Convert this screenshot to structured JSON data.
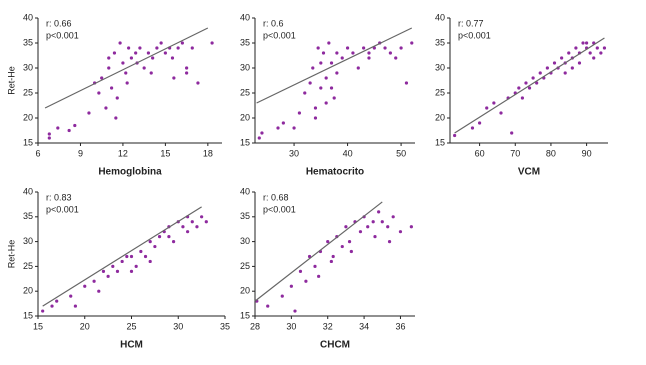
{
  "chart_data": [
    {
      "type": "scatter",
      "xlabel": "Hemoglobina",
      "ylabel": "Ret-He",
      "annotations": [
        "r: 0.66",
        "p<0.001"
      ],
      "color": "#8e2a9e",
      "x": [
        6.8,
        6.8,
        7.4,
        8.2,
        8.6,
        9.6,
        10,
        10.3,
        10.5,
        10.8,
        11,
        11.2,
        11.4,
        11.6,
        11.8,
        12,
        12.2,
        12.4,
        12.6,
        12.9,
        13.2,
        13.5,
        13.8,
        14.1,
        14.4,
        14.7,
        15,
        15.3,
        15.6,
        15.9,
        16.2,
        16.5,
        16.9,
        17.3,
        18.3,
        11,
        11.5,
        12.3,
        13,
        14,
        15.5,
        16.5
      ],
      "y": [
        16,
        16.8,
        18,
        17.5,
        18.5,
        21,
        27,
        25,
        28,
        22,
        30,
        26,
        33,
        24,
        35,
        31,
        29,
        34,
        32,
        33,
        34,
        30,
        33,
        32,
        34,
        35,
        33,
        34,
        28,
        34,
        35,
        29,
        34,
        27,
        35,
        32,
        20,
        27,
        31,
        29,
        32,
        30
      ],
      "trendline": {
        "x": [
          6.5,
          18
        ],
        "y": [
          22,
          38
        ]
      },
      "xlim": [
        6,
        19
      ],
      "ylim": [
        15,
        40
      ],
      "xticks": [
        6,
        9,
        12,
        15,
        18
      ],
      "yticks": [
        15,
        20,
        25,
        30,
        35,
        40
      ]
    },
    {
      "type": "scatter",
      "xlabel": "Hematocrito",
      "annotations": [
        "r: 0.6",
        "p<0.001"
      ],
      "color": "#8e2a9e",
      "x": [
        23.5,
        24,
        27,
        28,
        30,
        31,
        32,
        33,
        33.5,
        34,
        34.5,
        35,
        35.5,
        36,
        36.5,
        37,
        37.5,
        38,
        39,
        40,
        41,
        42,
        43,
        44,
        45,
        46,
        47,
        48,
        50,
        51,
        52,
        34,
        36,
        38,
        35,
        37,
        44,
        49
      ],
      "y": [
        16,
        17,
        18,
        19,
        18,
        21,
        25,
        27,
        30,
        22,
        34,
        26,
        33,
        28,
        35,
        31,
        24,
        33,
        32,
        34,
        33,
        30,
        34,
        33,
        34,
        35,
        34,
        33,
        34,
        27,
        35,
        20,
        23,
        29,
        31,
        26,
        32,
        32
      ],
      "trendline": {
        "x": [
          23,
          52
        ],
        "y": [
          23,
          38
        ]
      },
      "xlim": [
        22.7,
        52.6
      ],
      "ylim": [
        15,
        40
      ],
      "xticks": [
        30,
        40,
        50
      ],
      "yticks": [
        15,
        20,
        25,
        30,
        35,
        40
      ]
    },
    {
      "type": "scatter",
      "xlabel": "VCM",
      "annotations": [
        "r: 0.77",
        "p<0.001"
      ],
      "color": "#8e2a9e",
      "x": [
        53,
        58,
        60,
        62,
        64,
        66,
        68,
        69,
        70,
        71,
        72,
        73,
        74,
        75,
        76,
        77,
        78,
        79,
        80,
        81,
        82,
        83,
        84,
        85,
        86,
        87,
        88,
        89,
        90,
        91,
        92,
        93,
        94,
        95,
        86,
        88,
        90,
        84,
        92
      ],
      "y": [
        16.5,
        18,
        19,
        22,
        23,
        21,
        24,
        17,
        25,
        26,
        24,
        27,
        26,
        28,
        27,
        29,
        28,
        30,
        29,
        31,
        30,
        32,
        31,
        33,
        32,
        34,
        33,
        35,
        34,
        33,
        35,
        34,
        33,
        34,
        30,
        31,
        35,
        29,
        32
      ],
      "trendline": {
        "x": [
          53,
          95
        ],
        "y": [
          17,
          36
        ]
      },
      "xlim": [
        51.7,
        96
      ],
      "ylim": [
        15,
        40
      ],
      "xticks": [
        60,
        70,
        80,
        90
      ],
      "yticks": [
        15,
        20,
        25,
        30,
        35,
        40
      ]
    },
    {
      "type": "scatter",
      "xlabel": "HCM",
      "ylabel": "Ret-He",
      "annotations": [
        "r: 0.83",
        "p<0.001"
      ],
      "color": "#8e2a9e",
      "x": [
        15.5,
        16.5,
        17,
        18.5,
        19,
        20,
        21,
        21.5,
        22,
        22.5,
        23,
        23.5,
        24,
        24.5,
        25,
        25.5,
        26,
        26.5,
        27,
        27.5,
        28,
        28.5,
        29,
        29.5,
        30,
        30.5,
        31,
        31.5,
        32,
        32.5,
        33,
        25,
        27,
        29,
        31
      ],
      "y": [
        16,
        17,
        18,
        19,
        17,
        21,
        22,
        20,
        24,
        23,
        25,
        24,
        26,
        27,
        27,
        25,
        28,
        27,
        30,
        29,
        31,
        32,
        33,
        30,
        34,
        33,
        35,
        34,
        33,
        35,
        34,
        24,
        26,
        31,
        32
      ],
      "trendline": {
        "x": [
          15.5,
          32.5
        ],
        "y": [
          17,
          37
        ]
      },
      "xlim": [
        15,
        35
      ],
      "ylim": [
        15,
        40
      ],
      "xticks": [
        15,
        20,
        25,
        30,
        35
      ],
      "yticks": [
        15,
        20,
        25,
        30,
        35,
        40
      ]
    },
    {
      "type": "scatter",
      "xlabel": "CHCM",
      "annotations": [
        "r: 0.68",
        "p<0.001"
      ],
      "color": "#8e2a9e",
      "x": [
        28.1,
        28.7,
        29.5,
        30,
        30.5,
        30.8,
        31,
        31.3,
        31.6,
        32,
        32.2,
        32.5,
        32.8,
        33,
        33.2,
        33.5,
        33.8,
        34,
        34.2,
        34.5,
        34.8,
        35,
        35.3,
        35.6,
        36,
        36.6,
        31.5,
        32.3,
        33.3,
        34.6,
        35.4,
        30.2
      ],
      "y": [
        18,
        17,
        19,
        21,
        24,
        22,
        27,
        25,
        28,
        30,
        26,
        31,
        29,
        33,
        30,
        34,
        32,
        35,
        33,
        34,
        36,
        34,
        33,
        35,
        32,
        33,
        23,
        27,
        28,
        31,
        30,
        16
      ],
      "trendline": {
        "x": [
          28,
          35
        ],
        "y": [
          18,
          38
        ]
      },
      "xlim": [
        28,
        36.8
      ],
      "ylim": [
        15,
        40
      ],
      "xticks": [
        28,
        30,
        32,
        34,
        36
      ],
      "yticks": [
        15,
        20,
        25,
        30,
        35,
        40
      ]
    }
  ]
}
